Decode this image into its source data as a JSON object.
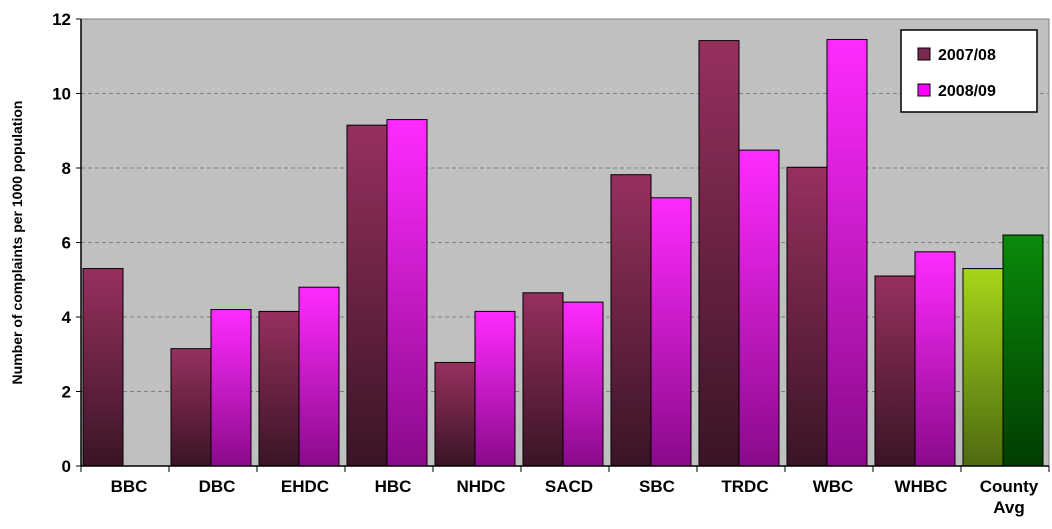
{
  "chart_data": {
    "type": "bar",
    "ylabel": "Number of complaints per 1000 population",
    "ylim": [
      0,
      12
    ],
    "yticks": [
      0,
      2,
      4,
      6,
      8,
      10,
      12
    ],
    "grid": "horizontal dashed",
    "legend_position": "top-right",
    "plot_background": "#c0c0c0",
    "categories": [
      "BBC",
      "DBC",
      "EHDC",
      "HBC",
      "NHDC",
      "SACD",
      "SBC",
      "TRDC",
      "WBC",
      "WHBC",
      "County Avg"
    ],
    "series": [
      {
        "name": "2007/08",
        "color": "#7a2a52",
        "values": [
          5.3,
          3.15,
          4.15,
          9.15,
          2.78,
          4.65,
          7.82,
          11.42,
          8.02,
          5.1,
          5.3
        ]
      },
      {
        "name": "2008/09",
        "color": "#ff00ff",
        "values": [
          null,
          4.2,
          4.8,
          9.3,
          4.15,
          4.4,
          7.2,
          8.48,
          11.45,
          5.75,
          6.2
        ]
      }
    ],
    "highlight_category": {
      "name": "County Avg",
      "colors": [
        "#99cc00",
        "#008000"
      ]
    }
  }
}
